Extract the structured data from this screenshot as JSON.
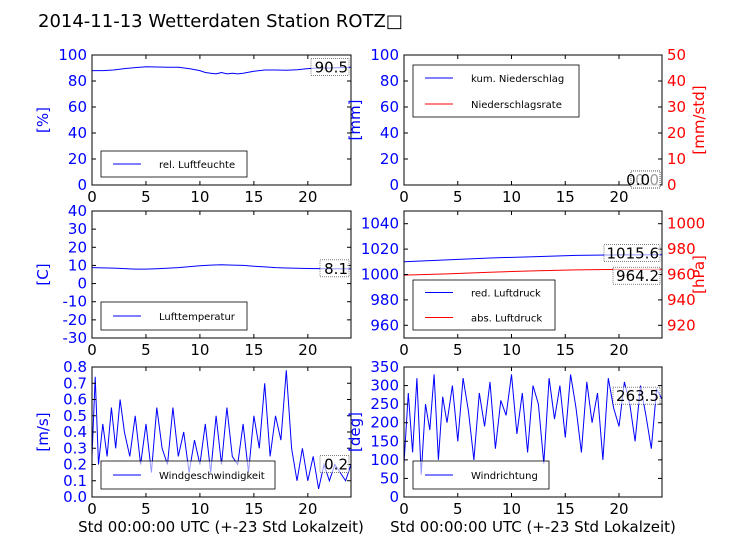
{
  "page": {
    "title": "2014-11-13 Wetterdaten Station ROTZ□",
    "xlabel": "Std 00:00:00 UTC (+-23 Std Lokalzeit)"
  },
  "colors": {
    "blue": "#0000ff",
    "red": "#ff0000",
    "black": "#000000"
  },
  "chart_data": [
    {
      "id": "humidity",
      "type": "line",
      "ylabel": "[%]",
      "xlim": [
        0,
        24
      ],
      "ylim": [
        0,
        100
      ],
      "xticks": [
        0,
        5,
        10,
        15,
        20
      ],
      "yticks": [
        0,
        20,
        40,
        60,
        80,
        100
      ],
      "grid": false,
      "legend_placement": "lower-left",
      "value_label": "90.5",
      "series": [
        {
          "name": "rel. Luftfeuchte",
          "color": "blue",
          "x": [
            0,
            1,
            2,
            3,
            4,
            5,
            6,
            7,
            8,
            9,
            10,
            10.5,
            11,
            11.5,
            12,
            12.5,
            13,
            13.5,
            14,
            15,
            16,
            17,
            18,
            19,
            20,
            21,
            22,
            23,
            24
          ],
          "y": [
            88,
            88,
            88.5,
            89.5,
            90.3,
            91,
            90.8,
            90.6,
            90.5,
            89.5,
            88,
            86.5,
            86,
            85.5,
            86.5,
            85.5,
            86,
            85.5,
            86,
            87.5,
            88.5,
            88.5,
            88.3,
            88.7,
            89.5,
            90,
            90,
            90.3,
            90.5
          ]
        }
      ]
    },
    {
      "id": "precip",
      "type": "line",
      "ylabel": "[mm]",
      "ylabel_right": "[mm/std]",
      "xlim": [
        0,
        24
      ],
      "ylim": [
        0,
        100
      ],
      "ylim_right": [
        0,
        50
      ],
      "xticks": [
        0,
        5,
        10,
        15,
        20
      ],
      "yticks": [
        0,
        20,
        40,
        60,
        80,
        100
      ],
      "yticks_right": [
        0,
        10,
        20,
        30,
        40,
        50
      ],
      "grid": false,
      "legend_placement": "upper-left",
      "value_labels": [
        "0.0",
        "0.0"
      ],
      "series": [
        {
          "name": "kum. Niederschlag",
          "color": "blue",
          "x": [
            0,
            24
          ],
          "y": [
            0,
            0
          ]
        },
        {
          "name": "Niederschlagsrate",
          "color": "red",
          "x": [
            0,
            24
          ],
          "y": [
            0,
            0
          ]
        }
      ]
    },
    {
      "id": "temperature",
      "type": "line",
      "ylabel": "[C]",
      "xlim": [
        0,
        24
      ],
      "ylim": [
        -30,
        40
      ],
      "xticks": [
        0,
        5,
        10,
        15,
        20
      ],
      "yticks": [
        -30,
        -20,
        -10,
        0,
        10,
        20,
        30,
        40
      ],
      "grid": false,
      "legend_placement": "lower-left",
      "value_label": "8.1",
      "series": [
        {
          "name": "Lufttemperatur",
          "color": "blue",
          "x": [
            0,
            2,
            4,
            5,
            6,
            8,
            10,
            11,
            12,
            13,
            14,
            15,
            16,
            17,
            18,
            19,
            20,
            22,
            24
          ],
          "y": [
            8.8,
            8.5,
            8.0,
            8.0,
            8.2,
            8.8,
            9.8,
            10.2,
            10.4,
            10.2,
            10.0,
            9.6,
            9.2,
            8.8,
            8.6,
            8.4,
            8.3,
            8.2,
            8.1
          ]
        }
      ]
    },
    {
      "id": "pressure",
      "type": "line",
      "ylabel_right": "[hPa]",
      "xlim": [
        0,
        24
      ],
      "ylim": [
        950,
        1050
      ],
      "ylim_right": [
        910,
        1010
      ],
      "xticks": [
        0,
        5,
        10,
        15,
        20
      ],
      "yticks": [
        960,
        980,
        1000,
        1020,
        1040
      ],
      "yticks_right": [
        920,
        940,
        960,
        980,
        1000
      ],
      "grid": false,
      "legend_placement": "lower-left",
      "value_labels": [
        "1015.6",
        "964.2"
      ],
      "series": [
        {
          "name": "red. Luftdruck",
          "color": "blue",
          "axis": "left",
          "x": [
            0,
            4,
            8,
            12,
            16,
            20,
            24
          ],
          "y": [
            1010,
            1011.5,
            1013,
            1014,
            1015,
            1015.4,
            1015.6
          ]
        },
        {
          "name": "abs. Luftdruck",
          "color": "red",
          "axis": "right",
          "x": [
            0,
            4,
            8,
            12,
            16,
            20,
            24
          ],
          "y": [
            959.5,
            960.5,
            961.8,
            962.8,
            963.6,
            964.0,
            964.2
          ]
        }
      ]
    },
    {
      "id": "windspeed",
      "type": "line",
      "ylabel": "[m/s]",
      "xlim": [
        0,
        24
      ],
      "ylim": [
        0,
        0.8
      ],
      "xticks": [
        0,
        5,
        10,
        15,
        20
      ],
      "yticks": [
        0.0,
        0.1,
        0.2,
        0.3,
        0.4,
        0.5,
        0.6,
        0.7,
        0.8
      ],
      "grid": false,
      "legend_placement": "lower-left",
      "value_label": "0.2",
      "series": [
        {
          "name": "Windgeschwindigkeit",
          "color": "blue",
          "x": [
            0,
            0.3,
            0.6,
            1,
            1.4,
            1.8,
            2.2,
            2.6,
            3,
            3.5,
            4,
            4.5,
            5,
            5.5,
            6,
            6.5,
            7,
            7.5,
            8,
            8.5,
            9,
            9.5,
            10,
            10.5,
            11,
            11.5,
            12,
            12.5,
            13,
            13.5,
            14,
            14.5,
            15,
            15.5,
            16,
            16.5,
            17,
            17.5,
            18,
            18.5,
            19,
            19.5,
            20,
            20.5,
            21,
            21.5,
            22,
            22.5,
            23,
            23.5,
            24
          ],
          "y": [
            0.25,
            0.74,
            0.2,
            0.45,
            0.25,
            0.55,
            0.3,
            0.6,
            0.4,
            0.25,
            0.5,
            0.2,
            0.45,
            0.15,
            0.55,
            0.3,
            0.2,
            0.55,
            0.25,
            0.4,
            0.15,
            0.35,
            0.2,
            0.45,
            0.15,
            0.5,
            0.2,
            0.55,
            0.25,
            0.2,
            0.45,
            0.15,
            0.5,
            0.3,
            0.7,
            0.25,
            0.5,
            0.35,
            0.78,
            0.3,
            0.1,
            0.3,
            0.1,
            0.25,
            0.05,
            0.2,
            0.1,
            0.2,
            0.15,
            0.1,
            0.2
          ]
        }
      ]
    },
    {
      "id": "winddir",
      "type": "line",
      "ylabel": "[deg]",
      "xlim": [
        0,
        24
      ],
      "ylim": [
        0,
        350
      ],
      "xticks": [
        0,
        5,
        10,
        15,
        20
      ],
      "yticks": [
        0,
        50,
        100,
        150,
        200,
        250,
        300,
        350
      ],
      "grid": false,
      "legend_placement": "lower-left",
      "value_label": "263.5",
      "series": [
        {
          "name": "Windrichtung",
          "color": "blue",
          "x": [
            0,
            0.4,
            0.8,
            1.2,
            1.6,
            2,
            2.4,
            2.8,
            3.2,
            3.6,
            4,
            4.5,
            5,
            5.5,
            6,
            6.5,
            7,
            7.5,
            8,
            8.5,
            9,
            9.5,
            10,
            10.5,
            11,
            11.5,
            12,
            12.5,
            13,
            13.5,
            14,
            14.5,
            15,
            15.5,
            16,
            16.5,
            17,
            17.5,
            18,
            18.5,
            19,
            19.5,
            20,
            20.5,
            21,
            21.5,
            22,
            22.5,
            23,
            23.5,
            24
          ],
          "y": [
            90,
            280,
            120,
            320,
            60,
            250,
            180,
            330,
            100,
            270,
            200,
            300,
            150,
            320,
            230,
            100,
            280,
            190,
            310,
            130,
            260,
            220,
            330,
            170,
            280,
            120,
            300,
            250,
            90,
            320,
            210,
            300,
            160,
            330,
            240,
            120,
            310,
            200,
            280,
            100,
            320,
            240,
            190,
            310,
            250,
            150,
            300,
            220,
            130,
            290,
            263.5
          ]
        }
      ]
    }
  ]
}
